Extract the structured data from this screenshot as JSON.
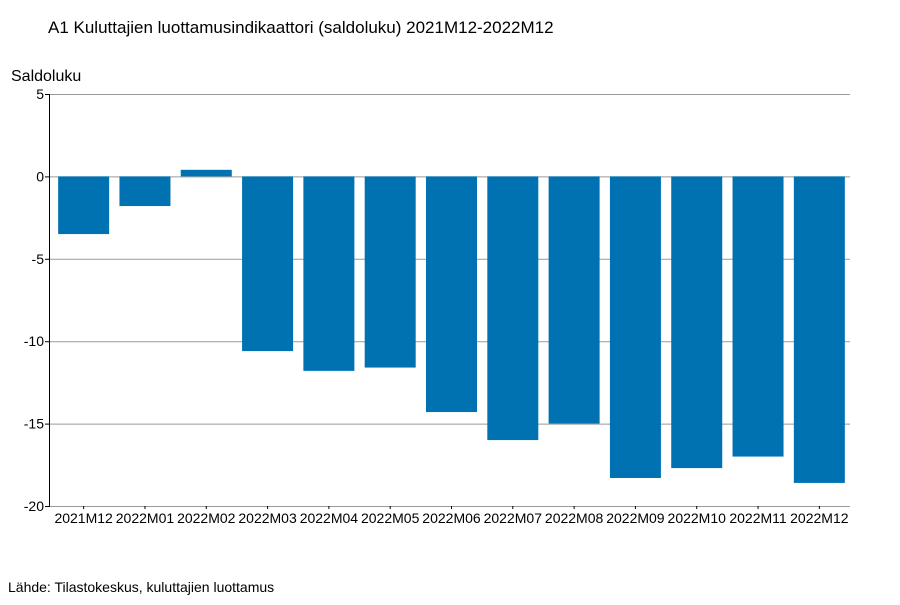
{
  "chart_data": {
    "type": "bar",
    "title": "A1 Kuluttajien luottamusindikaattori (saldoluku) 2021M12-2022M12",
    "ylabel": "Saldoluku",
    "xlabel": "",
    "source": "Lähde: Tilastokeskus, kuluttajien luottamus",
    "categories": [
      "2021M12",
      "2022M01",
      "2022M02",
      "2022M03",
      "2022M04",
      "2022M05",
      "2022M06",
      "2022M07",
      "2022M08",
      "2022M09",
      "2022M10",
      "2022M11",
      "2022M12"
    ],
    "values": [
      -3.5,
      -1.8,
      0.4,
      -10.6,
      -11.8,
      -11.6,
      -14.3,
      -16.0,
      -15.0,
      -18.3,
      -17.7,
      -17.0,
      -18.6
    ],
    "ylim": [
      -20,
      5
    ],
    "yticks": [
      5,
      0,
      -5,
      -10,
      -15,
      -20
    ],
    "grid": true,
    "bar_color": "#0072b2",
    "grid_color": "#9a9a9a",
    "legend": "none"
  }
}
